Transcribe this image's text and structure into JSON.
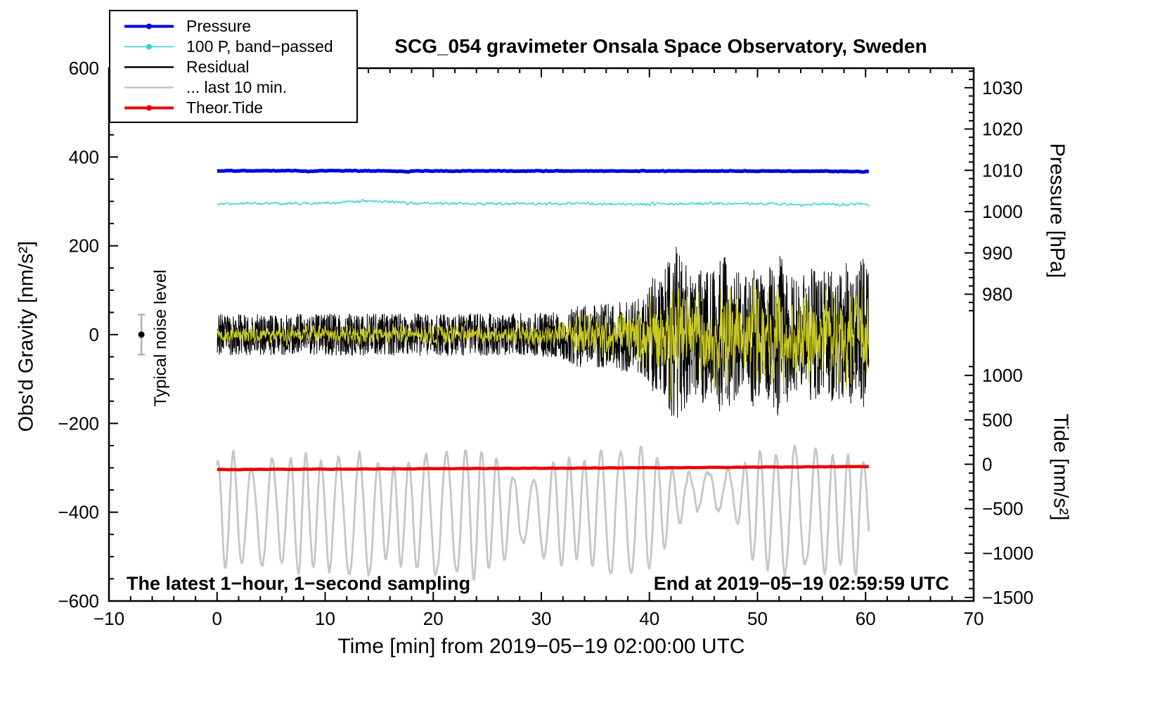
{
  "title": "SCG_054 gravimeter Onsala Space Observatory, Sweden",
  "legend": {
    "items": [
      {
        "label": "Pressure",
        "color": "#0000dd",
        "width": 4,
        "marker": true
      },
      {
        "label": "100 P, band−passed",
        "color": "#2fd4d4",
        "width": 1.5,
        "marker": true
      },
      {
        "label": "Residual",
        "color": "#000000",
        "width": 2.5,
        "marker": false
      },
      {
        "label": "... last 10 min.",
        "color": "#c6c6c6",
        "width": 2.5,
        "marker": false
      },
      {
        "label": "Theor.Tide",
        "color": "#ee0000",
        "width": 4,
        "marker": true
      }
    ]
  },
  "axis_labels": {
    "left": "Obs'd Gravity [nm/s²]",
    "right_top": "Pressure [hPa]",
    "right_bottom": "Tide [nm/s²]",
    "x": "Time [min] from 2019−05−19 02:00:00 UTC"
  },
  "annotations": {
    "noise_label": "Typical noise level",
    "bottom_left": "The latest 1−hour, 1−second sampling",
    "bottom_right": "End at 2019−05−19 02:59:59 UTC"
  },
  "chart_data": {
    "type": "line",
    "title": "SCG_054 gravimeter Onsala Space Observatory, Sweden",
    "xlabel": "Time [min] from 2019−05−19 02:00:00 UTC",
    "x_range": [
      -10,
      70
    ],
    "y_range_gravity": [
      -600,
      600
    ],
    "x_major_ticks": [
      -10,
      0,
      10,
      20,
      30,
      40,
      50,
      60,
      70
    ],
    "x_minor_step": 2,
    "y_major_ticks": [
      -600,
      -400,
      -200,
      0,
      200,
      400,
      600
    ],
    "y_minor_step": 50,
    "pressure_axis": {
      "label": "Pressure [hPa]",
      "major_ticks": [
        1030,
        1020,
        1010,
        1000,
        990,
        980
      ],
      "minor_step": 2,
      "minor_range": [
        976,
        1034
      ],
      "gravity_at_1010": 370,
      "gravity_per_hpa": 9.3
    },
    "tide_axis": {
      "label": "Tide [nm/s²]",
      "major_ticks": [
        1000,
        500,
        0,
        -500,
        -1000,
        -1500
      ],
      "minor_step": 100,
      "minor_range": [
        -1500,
        1100
      ],
      "gravity_at_0": -292,
      "gravity_per_unit": 0.2
    },
    "noise_marker": {
      "x": -7,
      "y": 0,
      "error": 45
    },
    "series": [
      {
        "name": "residual-last-10-min",
        "legend": "... last 10 min.",
        "color": "#c6c6c6",
        "width": 2.8,
        "x0": 0,
        "x1": 60.3,
        "n": 1600,
        "seed": 11,
        "base_bp": [
          [
            0,
            -400
          ],
          [
            11,
            -402
          ],
          [
            13.2,
            -415
          ],
          [
            15,
            -402
          ],
          [
            40,
            -398
          ],
          [
            42.5,
            -372
          ],
          [
            44,
            -352
          ],
          [
            46,
            -348
          ],
          [
            48,
            -358
          ],
          [
            49.5,
            -392
          ],
          [
            51,
            -398
          ],
          [
            60.3,
            -400
          ]
        ],
        "components": [
          {
            "kind": "osc",
            "period": 1.62,
            "phase": 1.2,
            "wobble_amp": 0.9,
            "wobble_period": 8.3,
            "amp_bp": [
              [
                0,
                110
              ],
              [
                1.5,
                135
              ],
              [
                3,
                95
              ],
              [
                4.5,
                130
              ],
              [
                6,
                105
              ],
              [
                7.5,
                140
              ],
              [
                9,
                115
              ],
              [
                10.5,
                130
              ],
              [
                12,
                125
              ],
              [
                13.2,
                145
              ],
              [
                14.5,
                115
              ],
              [
                16,
                100
              ],
              [
                17.5,
                115
              ],
              [
                19,
                130
              ],
              [
                20.5,
                140
              ],
              [
                22,
                130
              ],
              [
                23.5,
                145
              ],
              [
                25,
                135
              ],
              [
                26.5,
                110
              ],
              [
                27.5,
                80
              ],
              [
                29,
                70
              ],
              [
                30.5,
                110
              ],
              [
                32,
                125
              ],
              [
                33.5,
                105
              ],
              [
                35,
                130
              ],
              [
                36.5,
                140
              ],
              [
                38,
                130
              ],
              [
                39.5,
                145
              ],
              [
                41,
                115
              ],
              [
                42.5,
                60
              ],
              [
                44,
                38
              ],
              [
                45.5,
                42
              ],
              [
                47,
                52
              ],
              [
                48.5,
                70
              ],
              [
                50,
                135
              ],
              [
                51.5,
                115
              ],
              [
                53,
                145
              ],
              [
                54.5,
                125
              ],
              [
                56,
                140
              ],
              [
                57.5,
                120
              ],
              [
                59,
                135
              ],
              [
                60.3,
                105
              ]
            ]
          },
          {
            "kind": "noise",
            "smooth": 4,
            "amp_bp": [
              [
                0,
                8
              ],
              [
                60.3,
                8
              ]
            ]
          }
        ]
      },
      {
        "name": "theor-tide",
        "legend": "Theor.Tide",
        "color": "#ee0000",
        "width": 4.5,
        "x0": 0,
        "x1": 60.3,
        "n": 120,
        "seed": 5,
        "base_bp": [
          [
            0,
            -304
          ],
          [
            20,
            -302
          ],
          [
            40,
            -300
          ],
          [
            60.3,
            -297
          ]
        ],
        "components": [
          {
            "kind": "noise",
            "smooth": 1,
            "amp_bp": [
              [
                0,
                0.5
              ],
              [
                60.3,
                0.5
              ]
            ]
          }
        ]
      },
      {
        "name": "residual",
        "legend": "Residual",
        "color": "#000000",
        "width": 1,
        "x0": 0,
        "x1": 60.3,
        "n": 2600,
        "seed": 23,
        "base_bp": [
          [
            0,
            0
          ],
          [
            60.3,
            0
          ]
        ],
        "components": [
          {
            "kind": "noise",
            "smooth": 1,
            "amp_bp": [
              [
                0,
                46
              ],
              [
                28,
                48
              ],
              [
                31,
                52
              ],
              [
                32.5,
                60
              ],
              [
                33.5,
                75
              ],
              [
                34.5,
                60
              ],
              [
                35.5,
                80
              ],
              [
                36.5,
                65
              ],
              [
                37.5,
                85
              ],
              [
                38.5,
                80
              ],
              [
                39.5,
                95
              ],
              [
                40.2,
                130
              ],
              [
                41,
                120
              ],
              [
                41.8,
                175
              ],
              [
                42.5,
                200
              ],
              [
                43.2,
                170
              ],
              [
                44,
                125
              ],
              [
                44.8,
                160
              ],
              [
                45.6,
                135
              ],
              [
                46.4,
                170
              ],
              [
                47.2,
                200
              ],
              [
                48,
                145
              ],
              [
                48.8,
                135
              ],
              [
                49.6,
                165
              ],
              [
                50.5,
                125
              ],
              [
                51.5,
                170
              ],
              [
                52.2,
                195
              ],
              [
                53,
                135
              ],
              [
                54,
                125
              ],
              [
                55,
                155
              ],
              [
                55.8,
                135
              ],
              [
                56.6,
                155
              ],
              [
                57.5,
                145
              ],
              [
                58.3,
                165
              ],
              [
                59,
                145
              ],
              [
                59.7,
                175
              ],
              [
                60.3,
                135
              ]
            ]
          }
        ]
      },
      {
        "name": "residual-bandpassed",
        "legend": "",
        "color": "#c9c920",
        "width": 1.2,
        "x0": 0,
        "x1": 60.3,
        "n": 2600,
        "seed": 41,
        "base_bp": [
          [
            0,
            0
          ],
          [
            60.3,
            0
          ]
        ],
        "components": [
          {
            "kind": "noise",
            "smooth": 2,
            "amp_bp": [
              [
                0,
                15
              ],
              [
                20,
                17
              ],
              [
                28,
                18
              ],
              [
                31,
                20
              ],
              [
                32.5,
                28
              ],
              [
                33.5,
                42
              ],
              [
                34.5,
                32
              ],
              [
                35.5,
                45
              ],
              [
                36.5,
                38
              ],
              [
                37.5,
                55
              ],
              [
                38.5,
                50
              ],
              [
                39.5,
                62
              ],
              [
                40.2,
                85
              ],
              [
                41,
                70
              ],
              [
                41.8,
                95
              ],
              [
                42.5,
                105
              ],
              [
                43.2,
                95
              ],
              [
                44,
                70
              ],
              [
                44.8,
                85
              ],
              [
                45.6,
                72
              ],
              [
                46.4,
                88
              ],
              [
                47.2,
                100
              ],
              [
                48,
                78
              ],
              [
                48.8,
                72
              ],
              [
                49.6,
                85
              ],
              [
                50.5,
                68
              ],
              [
                51.5,
                88
              ],
              [
                52.2,
                100
              ],
              [
                53,
                75
              ],
              [
                54,
                70
              ],
              [
                55,
                85
              ],
              [
                55.8,
                72
              ],
              [
                56.6,
                82
              ],
              [
                57.5,
                78
              ],
              [
                58.3,
                88
              ],
              [
                59,
                78
              ],
              [
                59.7,
                92
              ],
              [
                60.3,
                75
              ]
            ]
          }
        ]
      },
      {
        "name": "pressure-bandpassed",
        "legend": "100 P, band−passed",
        "color": "#2fd4d4",
        "width": 1.4,
        "x0": 0,
        "x1": 60.3,
        "n": 1200,
        "seed": 17,
        "base_bp": [
          [
            0,
            295
          ],
          [
            8,
            296
          ],
          [
            11,
            297
          ],
          [
            12.5,
            300
          ],
          [
            13.5,
            301
          ],
          [
            14.5,
            300
          ],
          [
            16,
            298
          ],
          [
            18,
            296
          ],
          [
            21,
            295
          ],
          [
            25,
            294
          ],
          [
            30,
            295
          ],
          [
            34,
            294.5
          ],
          [
            38,
            294
          ],
          [
            42,
            295
          ],
          [
            46,
            295
          ],
          [
            50,
            295.5
          ],
          [
            52,
            294
          ],
          [
            54,
            292.5
          ],
          [
            56,
            294
          ],
          [
            57.5,
            292
          ],
          [
            59,
            294
          ],
          [
            60.3,
            292.5
          ]
        ],
        "components": [
          {
            "kind": "noise",
            "smooth": 2,
            "amp_bp": [
              [
                0,
                2.8
              ],
              [
                60.3,
                2.8
              ]
            ]
          }
        ]
      },
      {
        "name": "pressure",
        "legend": "Pressure",
        "color": "#0000dd",
        "width": 5,
        "x0": 0,
        "x1": 60.3,
        "n": 900,
        "seed": 29,
        "base_bp": [
          [
            0,
            369
          ],
          [
            7.5,
            369
          ],
          [
            8.5,
            367.5
          ],
          [
            9.5,
            369
          ],
          [
            16.5,
            368.5
          ],
          [
            17.5,
            367
          ],
          [
            18.5,
            368.5
          ],
          [
            40,
            368.5
          ],
          [
            55,
            368
          ],
          [
            60.3,
            367
          ]
        ],
        "components": [
          {
            "kind": "noise",
            "smooth": 2,
            "amp_bp": [
              [
                0,
                0.7
              ],
              [
                60.3,
                0.7
              ]
            ]
          }
        ]
      }
    ]
  }
}
